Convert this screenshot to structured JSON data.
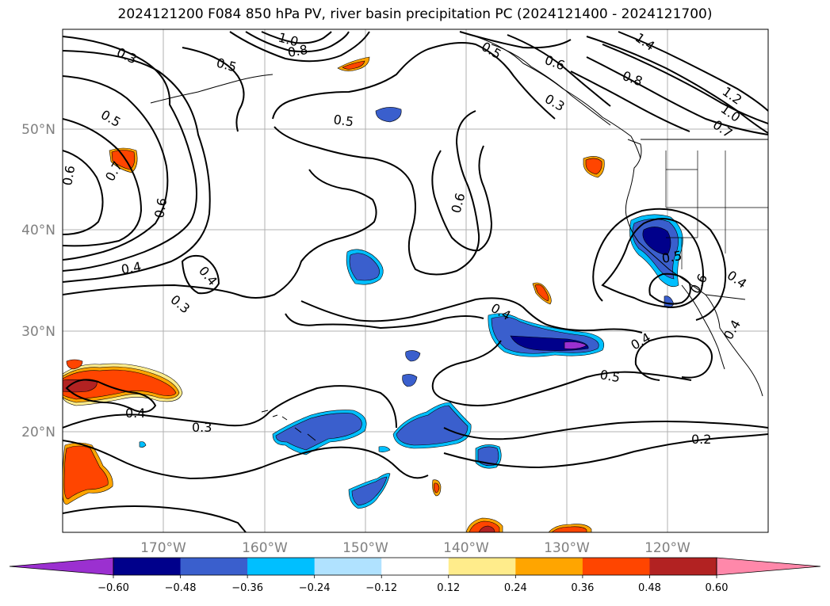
{
  "title": "2024121200 F084 850 hPa PV, river basin precipitation PC (2024121400 - 2024121700)",
  "map": {
    "lon_labels": [
      "170°W",
      "160°W",
      "150°W",
      "140°W",
      "130°W",
      "120°W"
    ],
    "lat_labels": [
      "50°N",
      "40°N",
      "30°N",
      "20°N"
    ],
    "contour_labels": [
      "0.3",
      "0.5",
      "1.0",
      "0.8",
      "0.5",
      "0.6",
      "1.4",
      "0.8",
      "1.2",
      "1.0",
      "0.7",
      "0.3",
      "0.5",
      "0.5",
      "0.7",
      "0.6",
      "0.4",
      "0.4",
      "0.3",
      "0.6",
      "0.5",
      "0.4",
      "0.4",
      "0.4",
      "0.6",
      "0.4",
      "0.5",
      "0.4",
      "0.3",
      "0.2",
      "0.6"
    ]
  },
  "colorbar": {
    "ticks": [
      "−0.60",
      "−0.48",
      "−0.36",
      "−0.24",
      "−0.12",
      "0.12",
      "0.24",
      "0.36",
      "0.48",
      "0.60"
    ],
    "colors": [
      "#9b30d0",
      "#00008b",
      "#3a5fcd",
      "#00bfff",
      "#b0e2ff",
      "#ffffff",
      "#ffec8b",
      "#ffa500",
      "#ff4500",
      "#b22222",
      "#ff88aa"
    ],
    "extend": "both"
  }
}
